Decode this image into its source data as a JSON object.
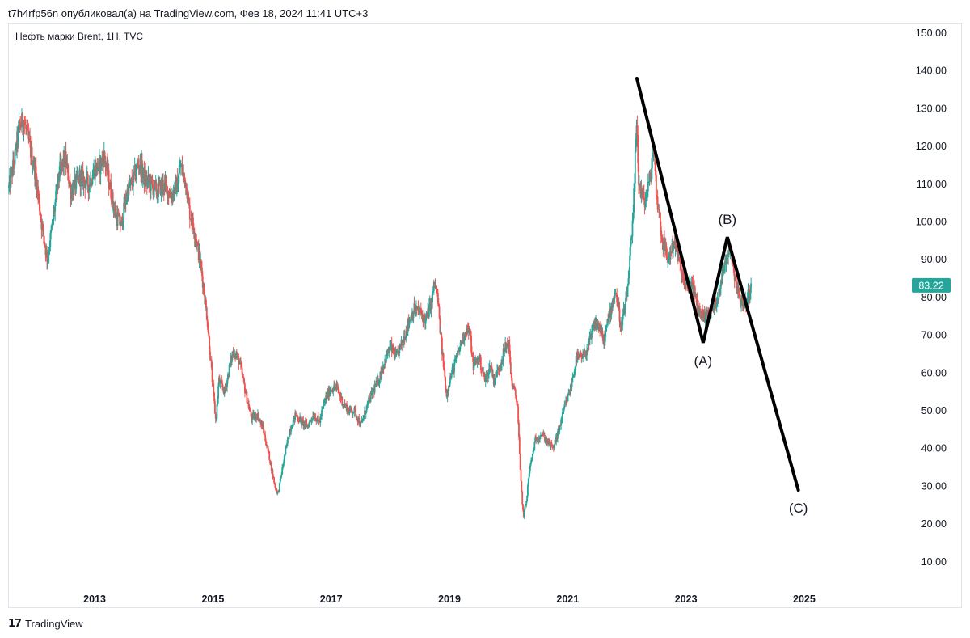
{
  "header": {
    "publish_line": "t7h4rfp56n опубликовал(а) на TradingView.com, Фев 18, 2024 11:41 UTC+3"
  },
  "chart_title": "Нефть марки Brent, 1H, TVC",
  "footer": {
    "brand": "TradingView",
    "logo_glyph": "𝟭𝟳"
  },
  "colors": {
    "up": "#26a69a",
    "down": "#ef5350",
    "pattern_line": "#000000",
    "price_badge": "#26a69a"
  },
  "chart_data": {
    "type": "candlestick",
    "symbol": "Нефть марки Brent",
    "interval": "1H",
    "exchange": "TVC",
    "current_price": "83.22",
    "ylim": [
      10,
      150
    ],
    "xlim_years": [
      2011.55,
      2026.6
    ],
    "y_ticks": [
      "150.00",
      "140.00",
      "130.00",
      "120.00",
      "110.00",
      "100.00",
      "90.00",
      "80.00",
      "70.00",
      "60.00",
      "50.00",
      "40.00",
      "30.00",
      "20.00",
      "10.00"
    ],
    "x_ticks": [
      "2013",
      "2015",
      "2017",
      "2019",
      "2021",
      "2023",
      "2025"
    ],
    "grid": false,
    "price_path": [
      [
        2011.55,
        109
      ],
      [
        2011.65,
        117
      ],
      [
        2011.72,
        125
      ],
      [
        2011.8,
        127
      ],
      [
        2011.9,
        120
      ],
      [
        2012.0,
        113
      ],
      [
        2012.1,
        100
      ],
      [
        2012.2,
        90
      ],
      [
        2012.3,
        101
      ],
      [
        2012.4,
        113
      ],
      [
        2012.5,
        117
      ],
      [
        2012.6,
        108
      ],
      [
        2012.75,
        112
      ],
      [
        2012.9,
        110
      ],
      [
        2013.0,
        114
      ],
      [
        2013.1,
        115
      ],
      [
        2013.15,
        118
      ],
      [
        2013.25,
        110
      ],
      [
        2013.35,
        102
      ],
      [
        2013.45,
        99
      ],
      [
        2013.55,
        108
      ],
      [
        2013.65,
        111
      ],
      [
        2013.75,
        116
      ],
      [
        2013.85,
        111
      ],
      [
        2013.95,
        110
      ],
      [
        2014.05,
        108
      ],
      [
        2014.15,
        110
      ],
      [
        2014.3,
        107
      ],
      [
        2014.4,
        110
      ],
      [
        2014.45,
        115
      ],
      [
        2014.55,
        110
      ],
      [
        2014.6,
        103
      ],
      [
        2014.7,
        97
      ],
      [
        2014.8,
        88
      ],
      [
        2014.9,
        75
      ],
      [
        2015.0,
        56
      ],
      [
        2015.05,
        47
      ],
      [
        2015.1,
        58
      ],
      [
        2015.2,
        55
      ],
      [
        2015.3,
        63
      ],
      [
        2015.35,
        66
      ],
      [
        2015.45,
        63
      ],
      [
        2015.55,
        55
      ],
      [
        2015.65,
        48
      ],
      [
        2015.75,
        49
      ],
      [
        2015.85,
        45
      ],
      [
        2015.95,
        38
      ],
      [
        2016.05,
        30
      ],
      [
        2016.1,
        28
      ],
      [
        2016.2,
        37
      ],
      [
        2016.3,
        45
      ],
      [
        2016.4,
        49
      ],
      [
        2016.5,
        47
      ],
      [
        2016.6,
        46
      ],
      [
        2016.7,
        49
      ],
      [
        2016.8,
        47
      ],
      [
        2016.9,
        53
      ],
      [
        2017.0,
        56
      ],
      [
        2017.1,
        56
      ],
      [
        2017.2,
        52
      ],
      [
        2017.3,
        50
      ],
      [
        2017.4,
        50
      ],
      [
        2017.5,
        46
      ],
      [
        2017.6,
        51
      ],
      [
        2017.7,
        55
      ],
      [
        2017.8,
        58
      ],
      [
        2017.9,
        63
      ],
      [
        2018.0,
        67
      ],
      [
        2018.1,
        64
      ],
      [
        2018.2,
        68
      ],
      [
        2018.3,
        73
      ],
      [
        2018.4,
        77
      ],
      [
        2018.5,
        76
      ],
      [
        2018.6,
        74
      ],
      [
        2018.7,
        79
      ],
      [
        2018.75,
        84
      ],
      [
        2018.8,
        80
      ],
      [
        2018.85,
        70
      ],
      [
        2018.9,
        62
      ],
      [
        2018.95,
        54
      ],
      [
        2019.0,
        58
      ],
      [
        2019.1,
        63
      ],
      [
        2019.2,
        68
      ],
      [
        2019.3,
        72
      ],
      [
        2019.35,
        70
      ],
      [
        2019.4,
        62
      ],
      [
        2019.5,
        64
      ],
      [
        2019.6,
        58
      ],
      [
        2019.7,
        62
      ],
      [
        2019.75,
        58
      ],
      [
        2019.85,
        62
      ],
      [
        2019.95,
        67
      ],
      [
        2020.0,
        68
      ],
      [
        2020.05,
        58
      ],
      [
        2020.15,
        52
      ],
      [
        2020.2,
        33
      ],
      [
        2020.25,
        22
      ],
      [
        2020.3,
        26
      ],
      [
        2020.35,
        34
      ],
      [
        2020.45,
        42
      ],
      [
        2020.55,
        44
      ],
      [
        2020.65,
        42
      ],
      [
        2020.75,
        40
      ],
      [
        2020.85,
        45
      ],
      [
        2020.95,
        51
      ],
      [
        2021.05,
        56
      ],
      [
        2021.15,
        64
      ],
      [
        2021.25,
        64
      ],
      [
        2021.35,
        67
      ],
      [
        2021.45,
        73
      ],
      [
        2021.55,
        72
      ],
      [
        2021.6,
        68
      ],
      [
        2021.7,
        75
      ],
      [
        2021.8,
        82
      ],
      [
        2021.85,
        78
      ],
      [
        2021.9,
        72
      ],
      [
        2022.0,
        80
      ],
      [
        2022.05,
        90
      ],
      [
        2022.1,
        99
      ],
      [
        2022.17,
        128
      ],
      [
        2022.2,
        110
      ],
      [
        2022.3,
        105
      ],
      [
        2022.4,
        112
      ],
      [
        2022.45,
        120
      ],
      [
        2022.5,
        108
      ],
      [
        2022.6,
        95
      ],
      [
        2022.7,
        90
      ],
      [
        2022.8,
        95
      ],
      [
        2022.9,
        88
      ],
      [
        2023.0,
        82
      ],
      [
        2023.1,
        84
      ],
      [
        2023.2,
        77
      ],
      [
        2023.3,
        75
      ],
      [
        2023.4,
        76
      ],
      [
        2023.5,
        78
      ],
      [
        2023.6,
        85
      ],
      [
        2023.7,
        92
      ],
      [
        2023.75,
        94
      ],
      [
        2023.8,
        88
      ],
      [
        2023.9,
        80
      ],
      [
        2024.0,
        78
      ],
      [
        2024.1,
        83.22
      ]
    ],
    "wave_pattern": [
      [
        2022.17,
        138
      ],
      [
        2023.29,
        68
      ],
      [
        2023.7,
        96
      ],
      [
        2024.9,
        29
      ]
    ],
    "wave_labels": [
      {
        "label": "(A)",
        "x": 2023.29,
        "y": 68,
        "position": "below"
      },
      {
        "label": "(B)",
        "x": 2023.7,
        "y": 96,
        "position": "above"
      },
      {
        "label": "(C)",
        "x": 2024.9,
        "y": 29,
        "position": "below"
      }
    ]
  }
}
